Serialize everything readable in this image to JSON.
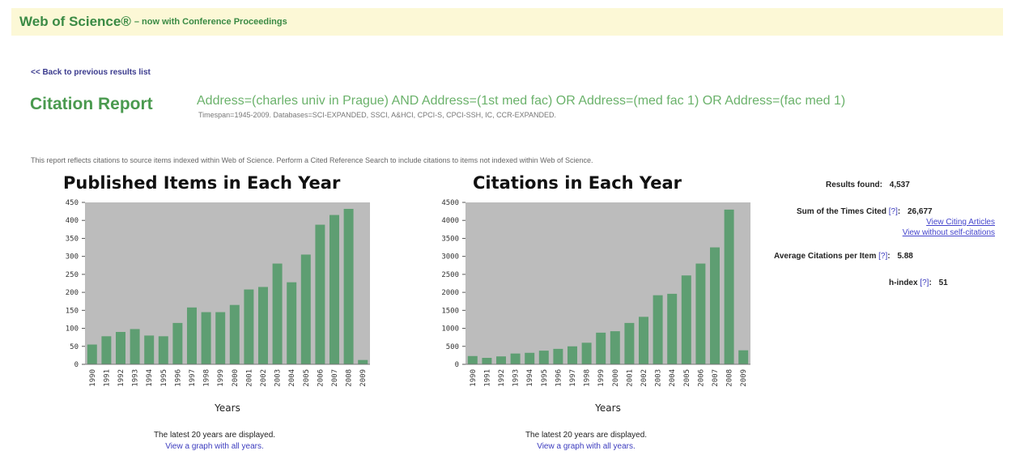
{
  "header": {
    "brand": "Web of Science®",
    "brand_sub": "– now with Conference Proceedings"
  },
  "back_link": "<< Back to previous results list",
  "report": {
    "title": "Citation Report",
    "query": "Address=(charles univ in Prague) AND Address=(1st med fac) OR Address=(med fac 1) OR Address=(fac med 1)",
    "timespan": "Timespan=1945-2009. Databases=SCI-EXPANDED, SSCI, A&HCI, CPCI-S, CPCI-SSH, IC, CCR-EXPANDED.",
    "note": "This report reflects citations to source items indexed within Web of Science. Perform a Cited Reference Search to include citations to items not indexed within Web of Science."
  },
  "charts_text": {
    "published": {
      "title": "Published Items in Each Year",
      "latest": "The latest 20 years are displayed.",
      "link": "View a graph with all years."
    },
    "citations": {
      "title": "Citations in Each Year",
      "latest": "The latest 20 years are displayed.",
      "link": "View a graph with all years."
    }
  },
  "stats": {
    "results_label": "Results found:",
    "results_value": "4,537",
    "sum_label": "Sum of the Times Cited",
    "sum_value": "26,677",
    "help": "[?]",
    "colon": ":",
    "view_citing": "View Citing Articles",
    "view_without": "View without self-citations",
    "avg_label": "Average Citations per Item",
    "avg_value": "5.88",
    "h_label": "h-index",
    "h_value": "51"
  },
  "colors": {
    "bar": "#5e9e72",
    "plot_bg": "#bcbcbc",
    "accent_green": "#4a9a4f"
  },
  "chart_data": [
    {
      "type": "bar",
      "title": "Published Items in Each Year",
      "xlabel": "Years",
      "ylabel": "",
      "categories": [
        "1990",
        "1991",
        "1992",
        "1993",
        "1994",
        "1995",
        "1996",
        "1997",
        "1998",
        "1999",
        "2000",
        "2001",
        "2002",
        "2003",
        "2004",
        "2005",
        "2006",
        "2007",
        "2008",
        "2009"
      ],
      "values": [
        55,
        78,
        90,
        98,
        80,
        78,
        115,
        158,
        145,
        145,
        165,
        208,
        215,
        280,
        228,
        305,
        388,
        415,
        432,
        12
      ],
      "ylim": [
        0,
        450
      ],
      "yticks": [
        0,
        50,
        100,
        150,
        200,
        250,
        300,
        350,
        400,
        450
      ],
      "ytick_labels": [
        "0",
        "50",
        "100",
        "150",
        "200",
        "250",
        "300",
        "350",
        "400",
        "450"
      ],
      "grid": false
    },
    {
      "type": "bar",
      "title": "Citations in Each Year",
      "xlabel": "Years",
      "ylabel": "",
      "categories": [
        "1990",
        "1991",
        "1992",
        "1993",
        "1994",
        "1995",
        "1996",
        "1997",
        "1998",
        "1999",
        "2000",
        "2001",
        "2002",
        "2003",
        "2004",
        "2005",
        "2006",
        "2007",
        "2008",
        "2009"
      ],
      "values": [
        230,
        180,
        220,
        300,
        320,
        380,
        430,
        500,
        600,
        880,
        920,
        1150,
        1320,
        1920,
        1960,
        2470,
        2800,
        3250,
        4300,
        390
      ],
      "ylim": [
        0,
        4500
      ],
      "yticks": [
        0,
        500,
        1000,
        1500,
        2000,
        2500,
        3000,
        3500,
        4000,
        4500
      ],
      "ytick_labels": [
        "0",
        "500",
        "1000",
        "1500",
        "2000",
        "2500",
        "3000",
        "3500",
        "4000",
        "4500"
      ],
      "grid": false
    }
  ]
}
